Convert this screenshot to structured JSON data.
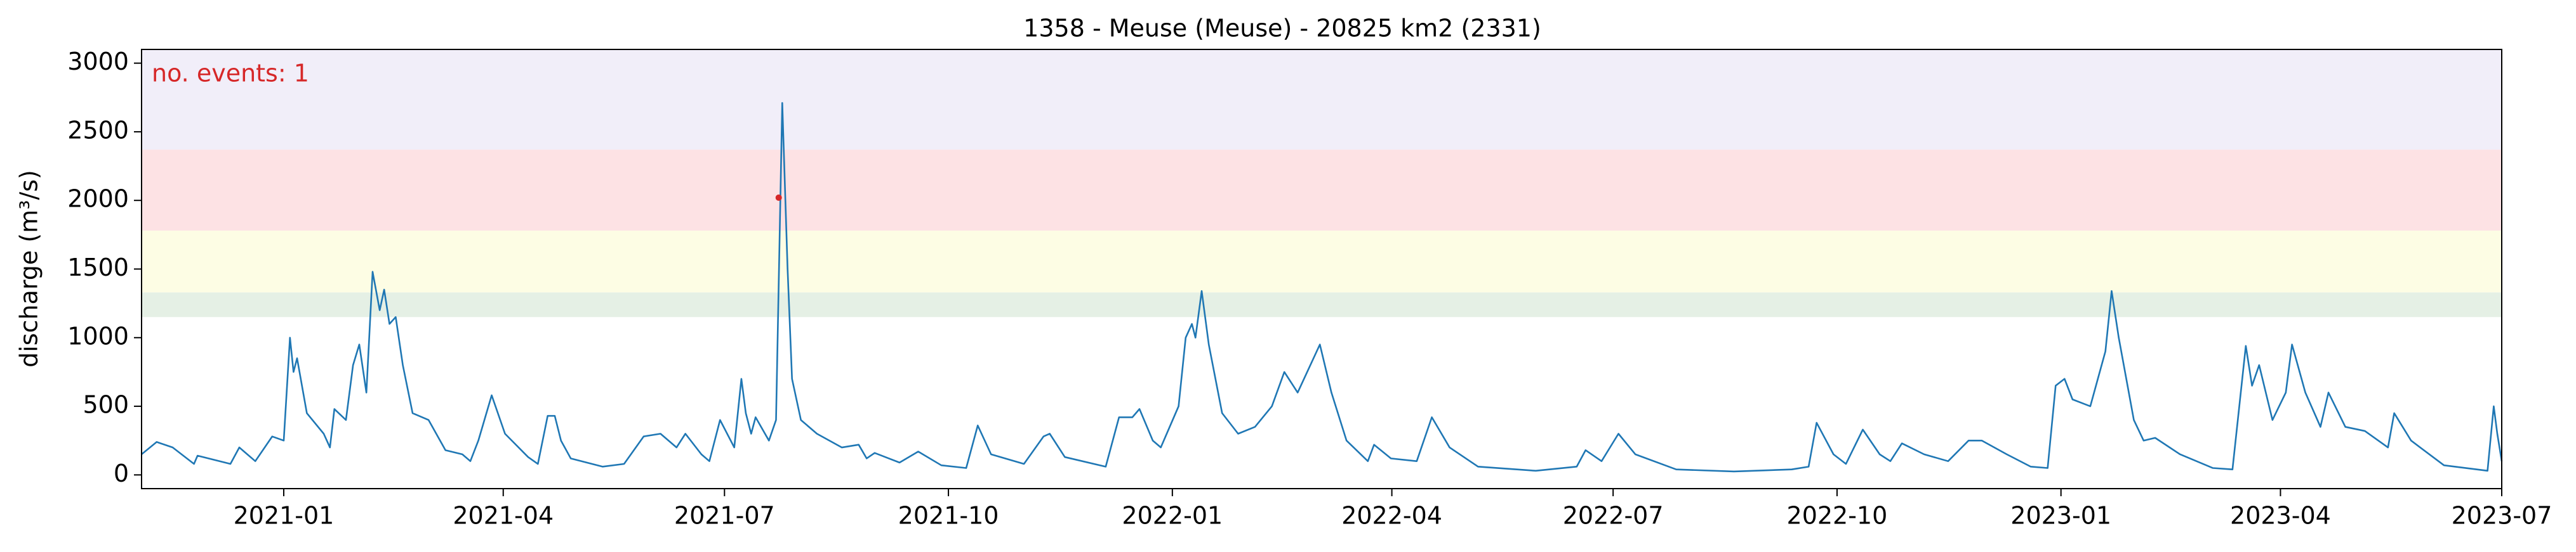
{
  "chart_data": {
    "type": "line",
    "title": "1358 - Meuse (Meuse) - 20825 km2 (2331)",
    "y_label": "discharge (m³/s)",
    "annotation": "no. events: 1",
    "annotation_color": "#d62728",
    "x": [
      2020.84,
      2020.857,
      2020.875,
      2020.899,
      2020.903,
      2020.94,
      2020.95,
      2020.968,
      2020.987,
      2021.0,
      2021.007,
      2021.011,
      2021.015,
      2021.026,
      2021.045,
      2021.052,
      2021.057,
      2021.07,
      2021.078,
      2021.085,
      2021.093,
      2021.1,
      2021.108,
      2021.113,
      2021.119,
      2021.126,
      2021.134,
      2021.145,
      2021.163,
      2021.182,
      2021.201,
      2021.21,
      2021.219,
      2021.234,
      2021.249,
      2021.275,
      2021.286,
      2021.297,
      2021.305,
      2021.312,
      2021.323,
      2021.359,
      2021.383,
      2021.405,
      2021.424,
      2021.442,
      2021.452,
      2021.47,
      2021.479,
      2021.491,
      2021.507,
      2021.515,
      2021.52,
      2021.526,
      2021.531,
      2021.546,
      2021.554,
      2021.561,
      2021.567,
      2021.572,
      2021.582,
      2021.6,
      2021.628,
      2021.647,
      2021.656,
      2021.665,
      2021.693,
      2021.714,
      2021.74,
      2021.768,
      2021.781,
      2021.796,
      2021.833,
      2021.855,
      2021.862,
      2021.879,
      2021.925,
      2021.94,
      2021.955,
      2021.963,
      2021.978,
      2021.987,
      2022.007,
      2022.015,
      2022.022,
      2022.026,
      2022.033,
      2022.041,
      2022.056,
      2022.074,
      2022.093,
      2022.112,
      2022.126,
      2022.141,
      2022.166,
      2022.179,
      2022.196,
      2022.22,
      2022.227,
      2022.246,
      2022.275,
      2022.292,
      2022.312,
      2022.344,
      2022.409,
      2022.455,
      2022.465,
      2022.483,
      2022.502,
      2022.521,
      2022.567,
      2022.632,
      2022.697,
      2022.716,
      2022.725,
      2022.744,
      2022.758,
      2022.777,
      2022.796,
      2022.808,
      2022.821,
      2022.846,
      2022.873,
      2022.896,
      2022.911,
      2022.939,
      2022.966,
      2022.985,
      2022.994,
      2023.004,
      2023.013,
      2023.033,
      2023.05,
      2023.057,
      2023.065,
      2023.082,
      2023.093,
      2023.106,
      2023.134,
      2023.171,
      2023.193,
      2023.208,
      2023.215,
      2023.223,
      2023.238,
      2023.253,
      2023.26,
      2023.275,
      2023.292,
      2023.301,
      2023.32,
      2023.342,
      2023.368,
      2023.375,
      2023.394,
      2023.431,
      2023.48,
      2023.487,
      2023.491,
      2023.496
    ],
    "series": [
      {
        "name": "discharge",
        "color": "#1f77b4",
        "values": [
          150,
          240,
          200,
          80,
          140,
          80,
          200,
          100,
          280,
          250,
          1000,
          750,
          850,
          450,
          300,
          200,
          480,
          400,
          800,
          950,
          600,
          1480,
          1200,
          1350,
          1100,
          1150,
          800,
          450,
          400,
          180,
          150,
          100,
          250,
          580,
          300,
          130,
          80,
          430,
          430,
          250,
          120,
          60,
          80,
          280,
          300,
          200,
          300,
          150,
          100,
          400,
          200,
          700,
          450,
          300,
          420,
          250,
          400,
          2710,
          1500,
          700,
          400,
          300,
          200,
          220,
          120,
          160,
          90,
          170,
          70,
          50,
          360,
          150,
          80,
          280,
          300,
          130,
          60,
          420,
          420,
          480,
          250,
          200,
          500,
          1000,
          1100,
          1000,
          1340,
          950,
          450,
          300,
          350,
          500,
          750,
          600,
          950,
          600,
          250,
          100,
          220,
          120,
          100,
          420,
          200,
          60,
          30,
          60,
          180,
          100,
          300,
          150,
          40,
          25,
          40,
          60,
          380,
          150,
          80,
          330,
          150,
          100,
          230,
          150,
          100,
          250,
          250,
          150,
          60,
          50,
          650,
          700,
          550,
          500,
          900,
          1340,
          1000,
          400,
          250,
          270,
          150,
          50,
          40,
          940,
          650,
          800,
          400,
          600,
          950,
          600,
          350,
          600,
          350,
          320,
          200,
          450,
          250,
          70,
          30,
          500,
          300,
          100
        ]
      }
    ],
    "bands": [
      {
        "range": [
          1150,
          1330
        ],
        "color": "#e5f0e5"
      },
      {
        "range": [
          1330,
          1780
        ],
        "color": "#fdfde4"
      },
      {
        "range": [
          1780,
          2370
        ],
        "color": "#fde2e4"
      },
      {
        "range": [
          2370,
          3100
        ],
        "color": "#f1eef9"
      }
    ],
    "events": [
      {
        "x": 2021.557,
        "y": 2020,
        "color": "#d62728"
      }
    ],
    "xlim": [
      2020.84,
      2023.496
    ],
    "ylim": [
      -100,
      3100
    ],
    "xticks": [
      {
        "value": 2021.0,
        "label": "2021-01"
      },
      {
        "value": 2021.247,
        "label": "2021-04"
      },
      {
        "value": 2021.496,
        "label": "2021-07"
      },
      {
        "value": 2021.748,
        "label": "2021-10"
      },
      {
        "value": 2022.0,
        "label": "2022-01"
      },
      {
        "value": 2022.247,
        "label": "2022-04"
      },
      {
        "value": 2022.496,
        "label": "2022-07"
      },
      {
        "value": 2022.748,
        "label": "2022-10"
      },
      {
        "value": 2023.0,
        "label": "2023-01"
      },
      {
        "value": 2023.247,
        "label": "2023-04"
      },
      {
        "value": 2023.496,
        "label": "2023-07"
      }
    ],
    "yticks": [
      0,
      500,
      1000,
      1500,
      2000,
      2500,
      3000
    ]
  }
}
